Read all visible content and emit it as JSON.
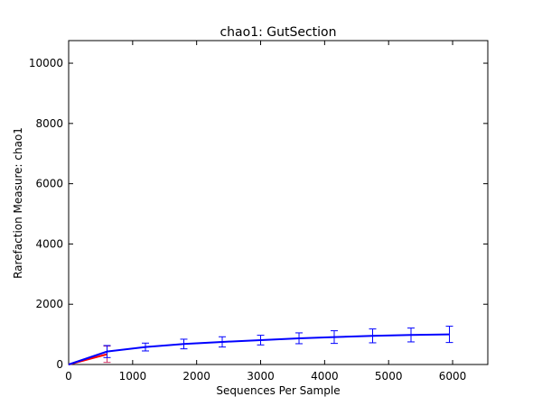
{
  "colors": {
    "series_blue": "#0000ff",
    "series_red": "#ff0000",
    "errorbar_red": "#cc3366",
    "axes": "#000000"
  },
  "chart_data": {
    "type": "line",
    "title": "chao1: GutSection",
    "xlabel": "Sequences Per Sample",
    "ylabel": "Rarefaction Measure: chao1",
    "xlim": [
      0,
      6550
    ],
    "ylim": [
      0,
      10750
    ],
    "xticks": [
      0,
      1000,
      2000,
      3000,
      4000,
      5000,
      6000
    ],
    "yticks": [
      0,
      2000,
      4000,
      6000,
      8000,
      10000
    ],
    "grid": false,
    "legend": "none",
    "series": [
      {
        "color": "#ff0000",
        "errorbar_color": "#cc3366",
        "x": [
          0,
          600
        ],
        "y": [
          0,
          340
        ],
        "err": [
          0,
          270
        ]
      },
      {
        "color": "#0000ff",
        "errorbar_color": "#0000ff",
        "x": [
          0,
          600,
          1200,
          1800,
          2400,
          3000,
          3600,
          4150,
          4750,
          5350,
          5950
        ],
        "y": [
          0,
          430,
          580,
          680,
          750,
          810,
          870,
          910,
          950,
          980,
          1000
        ],
        "err": [
          0,
          200,
          130,
          160,
          170,
          160,
          180,
          210,
          230,
          230,
          270
        ]
      }
    ]
  }
}
